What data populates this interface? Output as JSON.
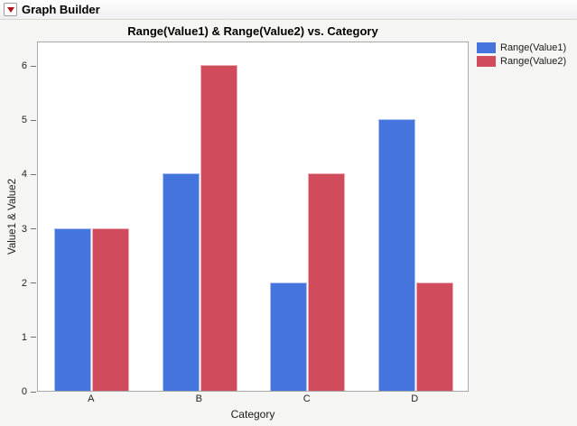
{
  "header": {
    "title": "Graph Builder",
    "disclosure_icon": "red-triangle-down"
  },
  "chart_data": {
    "type": "bar",
    "title": "Range(Value1) & Range(Value2) vs. Category",
    "categories": [
      "A",
      "B",
      "C",
      "D"
    ],
    "series": [
      {
        "name": "Range(Value1)",
        "color": "#4674DD",
        "values": [
          3,
          4,
          2,
          5
        ]
      },
      {
        "name": "Range(Value2)",
        "color": "#D04B5B",
        "values": [
          3,
          6,
          4,
          2
        ]
      }
    ],
    "xlabel": "Category",
    "ylabel": "Value1 & Value2",
    "ylim": [
      0,
      6.45
    ],
    "yticks": [
      0,
      1,
      2,
      3,
      4,
      5,
      6
    ],
    "grid": false,
    "legend_position": "top-right"
  },
  "colors": {
    "window_bg": "#f5f5f4",
    "plot_bg": "#ffffff",
    "plot_border": "#a8a8a8",
    "axis_text": "#222222",
    "series1_blue": "#4674DD",
    "series2_red": "#D04B5B",
    "disclosure_red": "#b11116"
  }
}
